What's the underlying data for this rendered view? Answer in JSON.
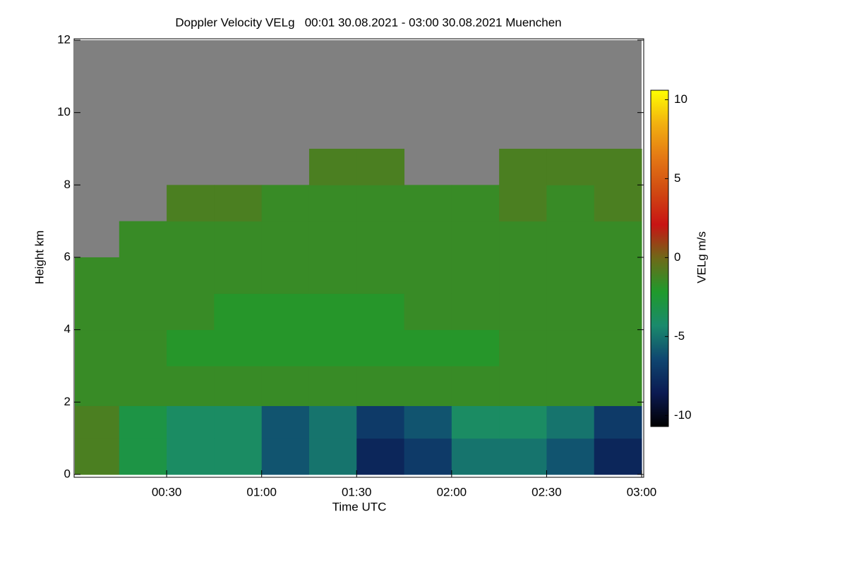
{
  "chart_data": {
    "type": "heatmap",
    "title": "Doppler Velocity VELg   00:01 30.08.2021 - 03:00 30.08.2021 Muenchen",
    "xlabel": "Time UTC",
    "ylabel": "Height km",
    "colorbar_label": "VELg m/s",
    "xlim": [
      1,
      180
    ],
    "xticks": [
      {
        "value": 30,
        "label": "00:30"
      },
      {
        "value": 60,
        "label": "01:00"
      },
      {
        "value": 90,
        "label": "01:30"
      },
      {
        "value": 120,
        "label": "02:00"
      },
      {
        "value": 150,
        "label": "02:30"
      },
      {
        "value": 180,
        "label": "03:00"
      }
    ],
    "ylim": [
      0,
      12
    ],
    "yticks": [
      0,
      2,
      4,
      6,
      8,
      10,
      12
    ],
    "clim": [
      -10.7,
      10.6
    ],
    "cticks": [
      -10,
      -5,
      0,
      5,
      10
    ],
    "colormap": [
      "#000000",
      "#0b1a52",
      "#0f4670",
      "#1a8a6c",
      "#1f9a2c",
      "#6e6a18",
      "#c81414",
      "#d04a12",
      "#e47814",
      "#f2b010",
      "#ffff00"
    ],
    "missing_color": "#808080",
    "xbins": [
      1,
      15,
      30,
      45,
      60,
      75,
      90,
      105,
      120,
      135,
      150,
      165,
      180
    ],
    "ybins": [
      0,
      1,
      1.9,
      3,
      4,
      5,
      6,
      7,
      8,
      9,
      12
    ],
    "values": [
      [
        -1,
        -3,
        -4,
        -4,
        -6,
        -5,
        -8,
        -7,
        -5,
        -5,
        -6,
        -8
      ],
      [
        -1,
        -3,
        -4,
        -4,
        -6,
        -5,
        -7,
        -6,
        -4,
        -4,
        -5,
        -7
      ],
      [
        -1.5,
        -1.5,
        -1.5,
        -1.5,
        -1.5,
        -1.5,
        -1.5,
        -1.5,
        -1.5,
        -1.5,
        -1.5,
        -1.5
      ],
      [
        -1.5,
        -1.5,
        -2,
        -2,
        -2,
        -2,
        -2,
        -2,
        -2,
        -1.5,
        -1.5,
        -1.5
      ],
      [
        -1.5,
        -1.5,
        -1.5,
        -2,
        -2,
        -2,
        -2,
        -1.5,
        -1.5,
        -1.5,
        -1.5,
        -1.5
      ],
      [
        -1.5,
        -1.5,
        -1.5,
        -1.5,
        -1.5,
        -1.5,
        -1.5,
        -1.5,
        -1.5,
        -1.5,
        -1.5,
        -1.5
      ],
      [
        null,
        -1.5,
        -1.5,
        -1.5,
        -1.5,
        -1.5,
        -1.5,
        -1.5,
        -1.5,
        -1.5,
        -1.5,
        -1.5
      ],
      [
        null,
        null,
        -1,
        -1,
        -1.5,
        -1.5,
        -1.5,
        -1.5,
        -1.5,
        -1,
        -1.5,
        -1
      ],
      [
        null,
        null,
        null,
        null,
        null,
        -1,
        -1,
        null,
        null,
        -1,
        -1,
        -1
      ],
      [
        null,
        null,
        null,
        null,
        null,
        null,
        null,
        null,
        null,
        null,
        null,
        null
      ]
    ]
  }
}
